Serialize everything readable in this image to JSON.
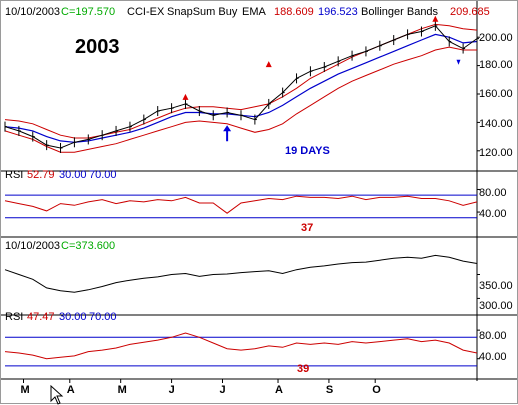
{
  "chart_data": [
    {
      "type": "line",
      "panel": "price",
      "date": "10/10/2003",
      "close_label": "C=197.570",
      "indicator_labels": [
        "CCI-EX",
        "SnapSum Buy",
        "EMA"
      ],
      "ema_values": [
        "188.609",
        "196.523"
      ],
      "bands_label": "Bollinger Bands",
      "bands_value": "209.685",
      "year": "2003",
      "annotation": "19 DAYS",
      "yticks": [
        "200.00",
        "180.00",
        "160.00",
        "140.00",
        "120.00"
      ],
      "ytick_values": [
        200,
        180,
        160,
        140,
        120
      ],
      "ylim": [
        110,
        210
      ],
      "x": [
        0,
        6,
        12,
        18,
        24,
        30,
        36,
        42,
        48,
        54,
        60,
        66,
        72,
        78,
        84,
        90,
        96,
        102,
        108,
        114,
        120,
        126,
        132,
        138,
        144,
        150,
        156,
        162,
        168,
        174,
        180,
        186,
        192,
        198,
        204
      ],
      "series": [
        {
          "values": [
            137,
            134,
            130,
            124,
            122,
            126,
            128,
            131,
            134,
            137,
            142,
            148,
            150,
            153,
            148,
            145,
            147,
            145,
            142,
            153,
            161,
            171,
            176,
            179,
            183,
            187,
            190,
            194,
            198,
            202,
            204,
            208,
            197,
            192,
            199
          ]
        },
        {
          "values": [
            137,
            136,
            134,
            130,
            127,
            126,
            127,
            129,
            131,
            133,
            136,
            140,
            144,
            147,
            147,
            146,
            146,
            145,
            144,
            147,
            152,
            158,
            164,
            169,
            174,
            178,
            182,
            186,
            190,
            194,
            198,
            202,
            200,
            196,
            197
          ]
        },
        {
          "values": [
            142,
            141,
            139,
            135,
            131,
            129,
            129,
            131,
            133,
            135,
            139,
            143,
            147,
            150,
            151,
            151,
            150,
            149,
            151,
            153,
            158,
            164,
            171,
            176,
            181,
            186,
            190,
            194,
            198,
            202,
            206,
            209,
            208,
            206,
            205
          ]
        },
        {
          "values": [
            134,
            131,
            128,
            123,
            119,
            119,
            121,
            123,
            125,
            128,
            131,
            134,
            137,
            140,
            141,
            140,
            139,
            136,
            133,
            135,
            139,
            146,
            152,
            158,
            164,
            169,
            173,
            177,
            181,
            184,
            187,
            191,
            193,
            191,
            191
          ]
        }
      ],
      "markers": [
        {
          "type": "up-triangle",
          "x": 78,
          "y": 158
        },
        {
          "type": "up-triangle",
          "x": 114,
          "y": 181
        },
        {
          "type": "up-triangle",
          "x": 186,
          "y": 213
        },
        {
          "type": "up-arrow",
          "x": 96,
          "y": 138
        },
        {
          "type": "down-arrow",
          "x": 196,
          "y": 182
        }
      ]
    },
    {
      "type": "line",
      "panel": "rsi",
      "label": "RSI",
      "value": "52.79",
      "params": [
        "30.00",
        "70.00"
      ],
      "yticks": [
        "80.00",
        "40.00"
      ],
      "ytick_values": [
        80,
        40
      ],
      "ylim": [
        10,
        95
      ],
      "levels": [
        70,
        30
      ],
      "annotation": "37",
      "x": [
        0,
        6,
        12,
        18,
        24,
        30,
        36,
        42,
        48,
        54,
        60,
        66,
        72,
        78,
        84,
        90,
        96,
        102,
        108,
        114,
        120,
        126,
        132,
        138,
        144,
        150,
        156,
        162,
        168,
        174,
        180,
        186,
        192,
        198,
        204
      ],
      "values": [
        60,
        55,
        50,
        42,
        55,
        52,
        58,
        62,
        55,
        60,
        58,
        62,
        60,
        66,
        56,
        56,
        38,
        56,
        60,
        64,
        62,
        68,
        66,
        66,
        64,
        68,
        62,
        66,
        66,
        68,
        64,
        64,
        60,
        52,
        58
      ]
    },
    {
      "type": "line",
      "panel": "cci",
      "date": "10/10/2003",
      "close_label": "C=373.600",
      "yticks": [
        "350.00",
        "300.00"
      ],
      "ytick_values": [
        350,
        300
      ],
      "ylim": [
        282,
        395
      ],
      "x": [
        0,
        6,
        12,
        18,
        24,
        30,
        36,
        42,
        48,
        54,
        60,
        66,
        72,
        78,
        84,
        90,
        96,
        102,
        108,
        114,
        120,
        126,
        132,
        138,
        144,
        150,
        156,
        162,
        168,
        174,
        180,
        186,
        192,
        198,
        204
      ],
      "values": [
        360,
        350,
        340,
        322,
        316,
        313,
        318,
        325,
        333,
        338,
        342,
        345,
        350,
        352,
        346,
        350,
        351,
        354,
        356,
        358,
        352,
        360,
        365,
        368,
        372,
        375,
        376,
        380,
        384,
        386,
        384,
        390,
        386,
        378,
        373
      ]
    },
    {
      "type": "line",
      "panel": "rsi2",
      "label": "RSI",
      "value": "47.47",
      "params": [
        "30.00",
        "70.00"
      ],
      "yticks": [
        "80.00",
        "40.00"
      ],
      "ytick_values": [
        80,
        40
      ],
      "ylim": [
        20,
        90
      ],
      "levels": [
        70,
        30
      ],
      "annotation": "39",
      "x": [
        0,
        6,
        12,
        18,
        24,
        30,
        36,
        42,
        48,
        54,
        60,
        66,
        72,
        78,
        84,
        90,
        96,
        102,
        108,
        114,
        120,
        126,
        132,
        138,
        144,
        150,
        156,
        162,
        168,
        174,
        180,
        186,
        192,
        198,
        204
      ],
      "values": [
        50,
        48,
        45,
        40,
        42,
        44,
        50,
        52,
        55,
        60,
        63,
        66,
        70,
        76,
        70,
        62,
        54,
        52,
        54,
        58,
        56,
        62,
        60,
        62,
        60,
        64,
        62,
        64,
        66,
        68,
        64,
        66,
        62,
        52,
        48
      ]
    }
  ],
  "xaxis": {
    "ticks": [
      {
        "label": "M",
        "x": 8
      },
      {
        "label": "A",
        "x": 28
      },
      {
        "label": "M",
        "x": 50
      },
      {
        "label": "J",
        "x": 72
      },
      {
        "label": "J",
        "x": 94
      },
      {
        "label": "A",
        "x": 118
      },
      {
        "label": "S",
        "x": 140
      },
      {
        "label": "O",
        "x": 160
      }
    ]
  },
  "colors": {
    "price": "#000000",
    "ema": "#0000cc",
    "bands": "#cc0000",
    "rsi_line": "#cc0000",
    "levels": "#0000cc",
    "green": "#00aa00",
    "red": "#cc0000",
    "blue": "#0000cc",
    "marker_up": "#dd0000",
    "marker_down": "#0000dd"
  }
}
